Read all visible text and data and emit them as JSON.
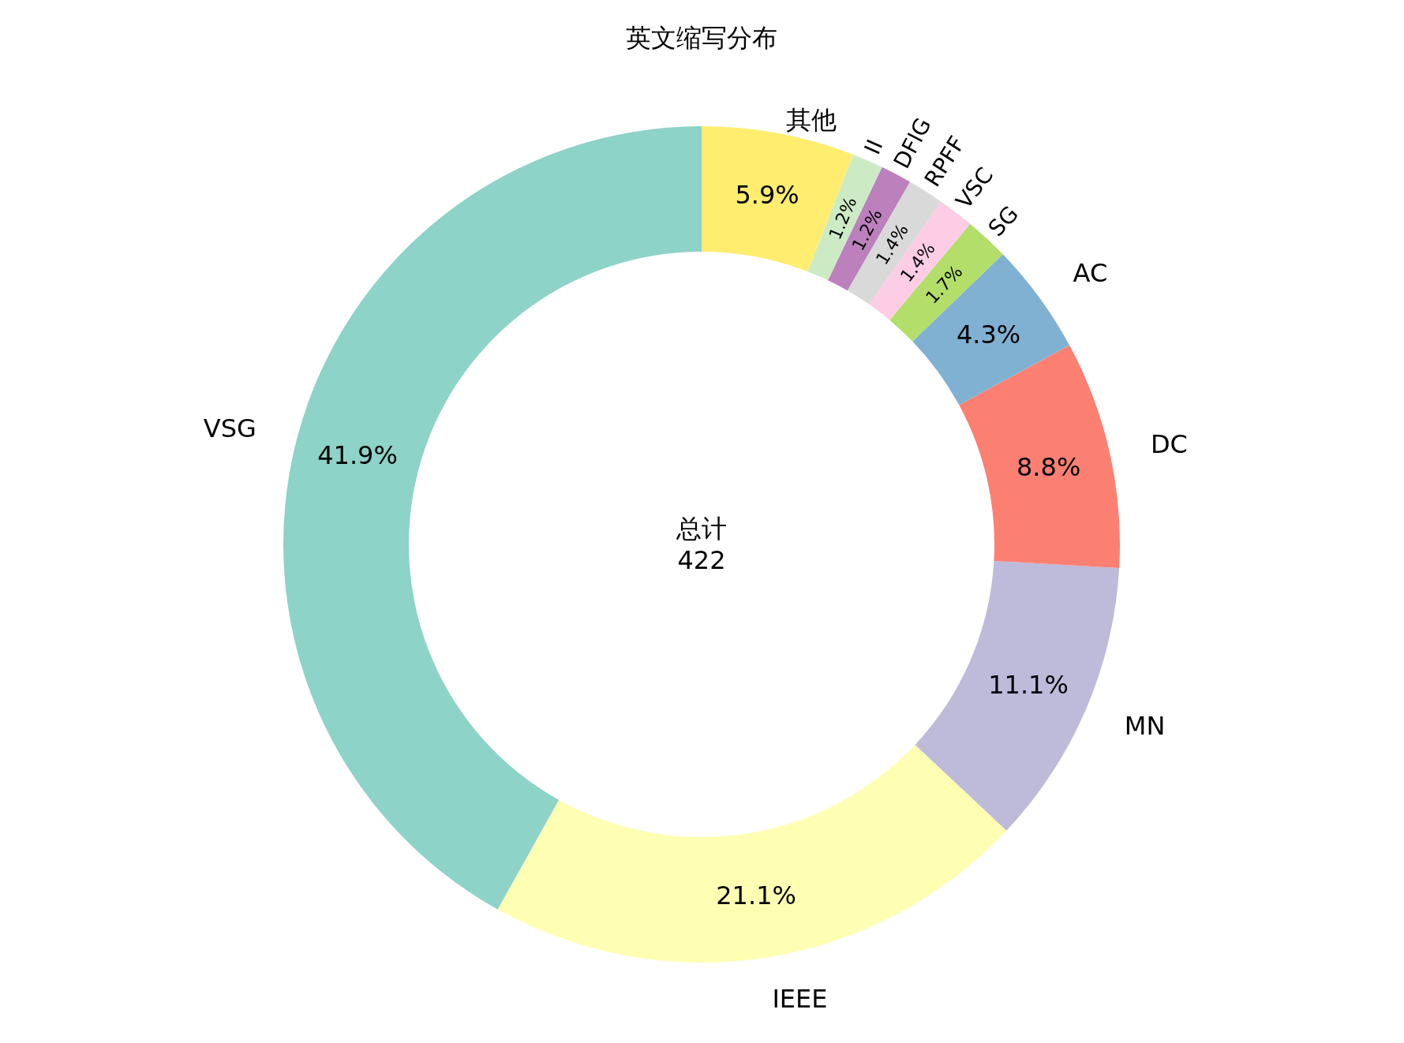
{
  "chart_data": {
    "type": "donut",
    "title": "英文缩写分布",
    "categories": [
      "VSG",
      "IEEE",
      "MN",
      "DC",
      "AC",
      "SG",
      "VSC",
      "RPFF",
      "DFIG",
      "II",
      "其他"
    ],
    "values": [
      41.9,
      21.1,
      11.1,
      8.8,
      4.3,
      1.7,
      1.4,
      1.4,
      1.2,
      1.2,
      5.9
    ],
    "colors": [
      "#8dd3c7",
      "#ffffb3",
      "#bebada",
      "#fb8072",
      "#80b1d3",
      "#b3de69",
      "#fccde5",
      "#d9d9d9",
      "#bc80bd",
      "#ccebc5",
      "#ffed6f"
    ],
    "value_labels": [
      "41.9%",
      "21.1%",
      "11.1%",
      "8.8%",
      "4.3%",
      "1.7%",
      "1.4%",
      "1.4%",
      "1.2%",
      "1.2%",
      "5.9%"
    ],
    "annotations": [
      "总计\n422"
    ]
  }
}
